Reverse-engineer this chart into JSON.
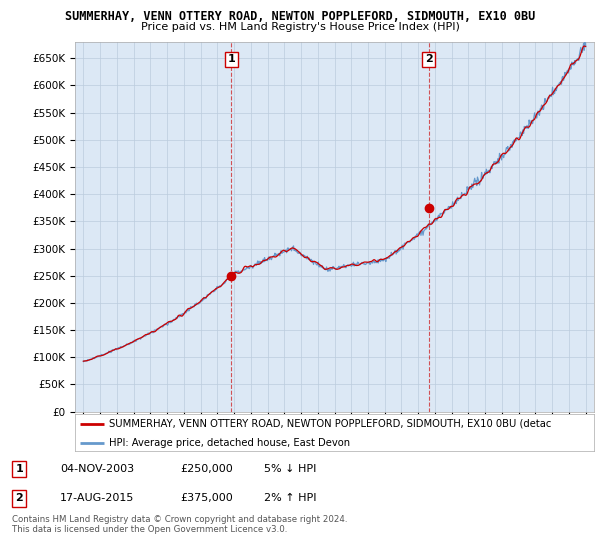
{
  "title": "SUMMERHAY, VENN OTTERY ROAD, NEWTON POPPLEFORD, SIDMOUTH, EX10 0BU",
  "subtitle": "Price paid vs. HM Land Registry's House Price Index (HPI)",
  "ylim": [
    0,
    680000
  ],
  "yticks": [
    0,
    50000,
    100000,
    150000,
    200000,
    250000,
    300000,
    350000,
    400000,
    450000,
    500000,
    550000,
    600000,
    650000
  ],
  "xlim": [
    1994.5,
    2025.5
  ],
  "sale1": {
    "date_str": "04-NOV-2003",
    "year": 2003.84,
    "price": 250000,
    "label": "1",
    "hpi_pct": "5% ↓ HPI"
  },
  "sale2": {
    "date_str": "17-AUG-2015",
    "year": 2015.62,
    "price": 375000,
    "label": "2",
    "hpi_pct": "2% ↑ HPI"
  },
  "legend_label_red": "SUMMERHAY, VENN OTTERY ROAD, NEWTON POPPLEFORD, SIDMOUTH, EX10 0BU (detac",
  "legend_label_blue": "HPI: Average price, detached house, East Devon",
  "footer": "Contains HM Land Registry data © Crown copyright and database right 2024.\nThis data is licensed under the Open Government Licence v3.0.",
  "red_color": "#cc0000",
  "blue_color": "#6699cc",
  "bg_color": "#dce8f5",
  "grid_color": "#bbccdd",
  "vline_color": "#cc0000",
  "title_fontsize": 8.5,
  "subtitle_fontsize": 8,
  "tick_fontsize": 7.5
}
